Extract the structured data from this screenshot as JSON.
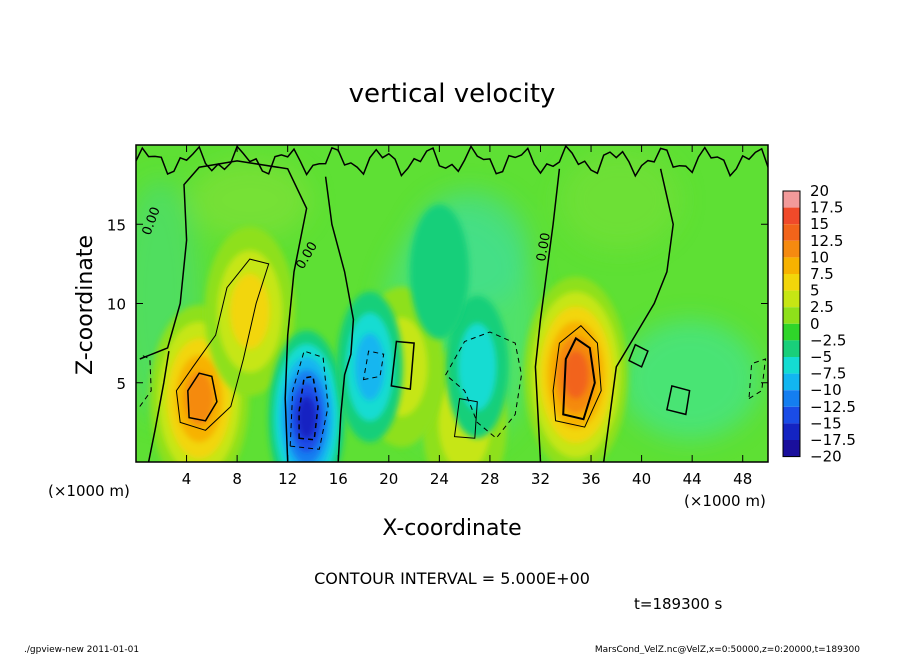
{
  "chart_data": {
    "type": "heatmap",
    "title": "vertical velocity",
    "xlabel": "X-coordinate",
    "ylabel": "Z-coordinate",
    "xunit_left": "(×1000 m)",
    "xunit_right": "(×1000 m)",
    "xlim": [
      0,
      50
    ],
    "ylim": [
      0,
      20
    ],
    "xticks": [
      "4",
      "8",
      "12",
      "16",
      "20",
      "24",
      "28",
      "32",
      "36",
      "40",
      "44",
      "48"
    ],
    "xtick_values": [
      4,
      8,
      12,
      16,
      20,
      24,
      28,
      32,
      36,
      40,
      44,
      48
    ],
    "yticks": [
      "5",
      "10",
      "15"
    ],
    "ytick_values": [
      5,
      10,
      15
    ],
    "contour_interval_text": "CONTOUR INTERVAL = 5.000E+00",
    "contour_labels": [
      "0.00",
      "0.00",
      "0.00"
    ],
    "time_text": "t=189300 s",
    "colorbar": {
      "labels": [
        "20",
        "17.5",
        "15",
        "12.5",
        "10",
        "7.5",
        "5",
        "2.5",
        "0",
        "−2.5",
        "−5",
        "−7.5",
        "−10",
        "−12.5",
        "−15",
        "−17.5",
        "−20"
      ],
      "colors": [
        "#f29a9a",
        "#f04a2a",
        "#f2641a",
        "#f58a10",
        "#f7b200",
        "#f2d60a",
        "#c6e614",
        "#8ee01a",
        "#2fd52a",
        "#19cf7a",
        "#14dcd2",
        "#12b6f0",
        "#147ef0",
        "#1a4ce6",
        "#1424c2",
        "#1a0f9c",
        "#7a18c8"
      ]
    },
    "background_value": 0,
    "features": [
      {
        "kind": "updraft",
        "x": 5.0,
        "z": 4.0,
        "peak": 12.5
      },
      {
        "kind": "updraft",
        "x": 9.0,
        "z": 9.5,
        "peak": 7.5
      },
      {
        "kind": "updraft",
        "x": 34.8,
        "z": 5.5,
        "peak": 15
      },
      {
        "kind": "updraft",
        "x": 26.0,
        "z": 2.5,
        "peak": 5
      },
      {
        "kind": "updraft",
        "x": 21.0,
        "z": 6.0,
        "peak": 5
      },
      {
        "kind": "downdraft",
        "x": 13.5,
        "z": 2.8,
        "peak": -15
      },
      {
        "kind": "downdraft",
        "x": 27.0,
        "z": 6.0,
        "peak": -5
      },
      {
        "kind": "downdraft",
        "x": 18.5,
        "z": 6.0,
        "peak": -7.5
      },
      {
        "kind": "downdraft",
        "x": 24.0,
        "z": 12.0,
        "peak": -2.5
      }
    ]
  },
  "footer": {
    "left": "./gpview-new 2011-01-01",
    "right": "MarsCond_VelZ.nc@VelZ,x=0:50000,z=0:20000,t=189300"
  }
}
